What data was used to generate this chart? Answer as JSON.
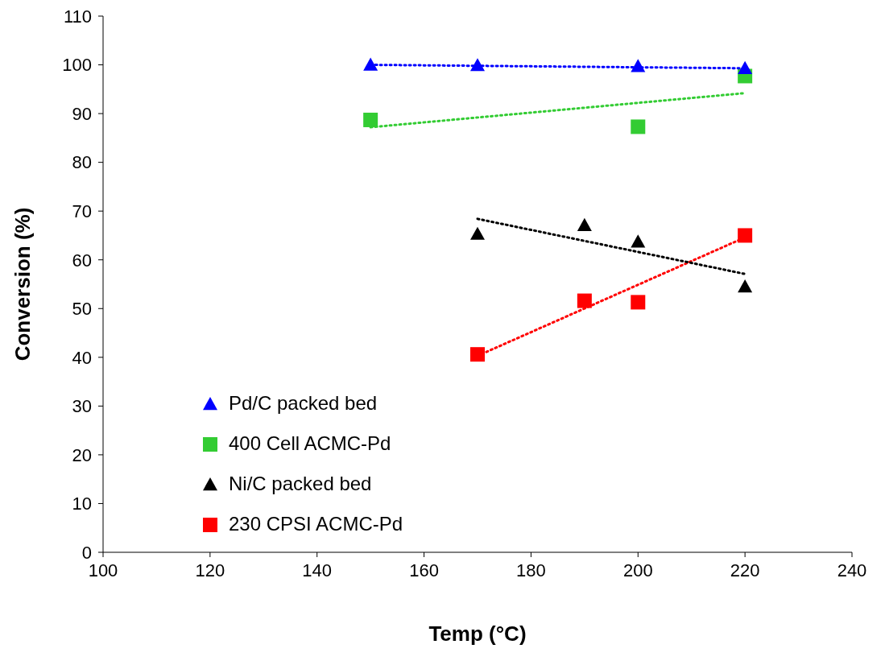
{
  "chart_data": {
    "type": "scatter",
    "xlabel": "Temp (°C)",
    "ylabel": "Conversion (%)",
    "xlim": [
      100,
      240
    ],
    "xticks": [
      100,
      120,
      140,
      160,
      180,
      200,
      220,
      240
    ],
    "ylim": [
      0,
      110
    ],
    "yticks": [
      0,
      10,
      20,
      30,
      40,
      50,
      60,
      70,
      80,
      90,
      100,
      110
    ],
    "grid": false,
    "legend": "bottom left",
    "series": [
      {
        "type": "line",
        "color": "#0000ff",
        "x": [
          150,
          220
        ],
        "values": [
          100,
          99.3
        ],
        "marker": "none",
        "line_style": "dotted"
      },
      {
        "type": "line",
        "color": "#33cc33",
        "x": [
          150,
          220
        ],
        "values": [
          87.2,
          94.2
        ],
        "marker": "none",
        "line_style": "dotted"
      },
      {
        "type": "line",
        "color": "#000000",
        "x": [
          170,
          220
        ],
        "values": [
          68.4,
          57.1
        ],
        "marker": "none",
        "line_style": "dotted"
      },
      {
        "type": "line",
        "color": "#ff0000",
        "x": [
          170,
          220
        ],
        "values": [
          40.3,
          64.6
        ],
        "marker": "none",
        "line_style": "dotted"
      },
      {
        "name": "Pd/C packed bed",
        "color": "#0000ff",
        "x": [
          150,
          170,
          200,
          220
        ],
        "values": [
          100,
          99.9,
          99.7,
          99.3
        ],
        "marker": "triangle"
      },
      {
        "name": "400 Cell ACMC-Pd",
        "color": "#33cc33",
        "x": [
          150,
          200,
          220
        ],
        "values": [
          88.7,
          87.3,
          97.7
        ],
        "marker": "square"
      },
      {
        "name": "Ni/C packed bed",
        "color": "#000000",
        "x": [
          170,
          190,
          200,
          220
        ],
        "values": [
          65.3,
          67.1,
          63.7,
          54.5
        ],
        "marker": "triangle"
      },
      {
        "name": "230 CPSI ACMC-Pd",
        "color": "#ff0000",
        "x": [
          170,
          190,
          200,
          220
        ],
        "values": [
          40.6,
          51.6,
          51.3,
          65
        ],
        "marker": "square"
      }
    ]
  }
}
